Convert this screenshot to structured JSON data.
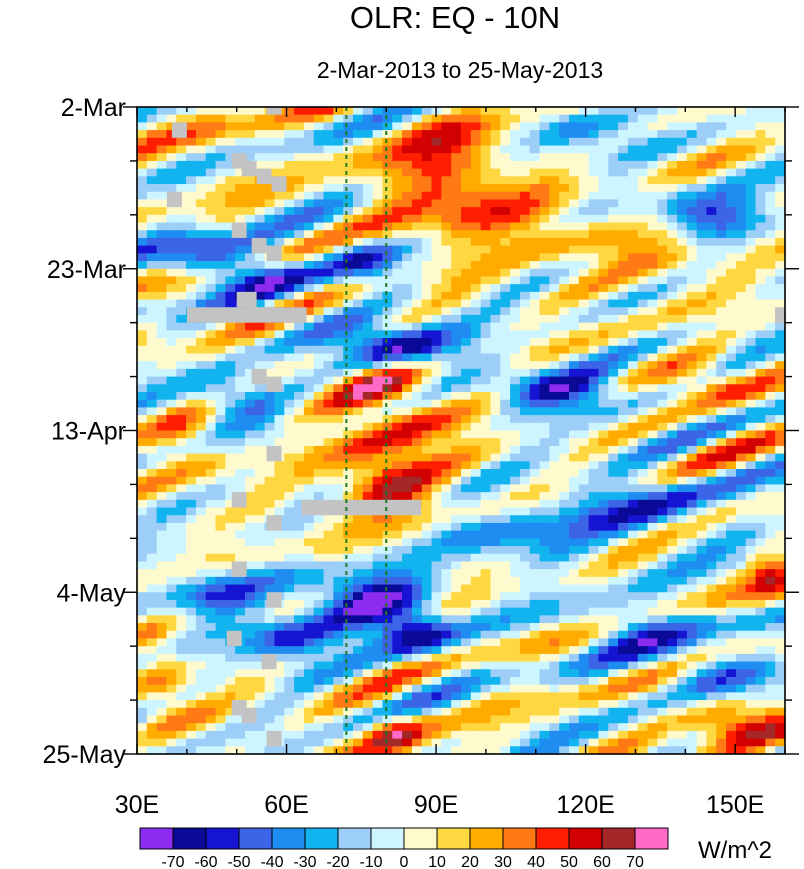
{
  "chart_data": {
    "type": "heatmap",
    "title": "OLR: EQ - 10N",
    "subtitle": "2-Mar-2013 to 25-May-2013",
    "x_axis": {
      "range": [
        30,
        160
      ],
      "ticks": [
        30,
        60,
        90,
        120,
        150
      ],
      "tick_labels": [
        "30E",
        "60E",
        "90E",
        "120E",
        "150E"
      ]
    },
    "y_axis": {
      "range_days": [
        0,
        84
      ],
      "ticks_days": [
        0,
        21,
        42,
        63,
        84
      ],
      "tick_labels": [
        "2-Mar",
        "23-Mar",
        "13-Apr",
        "4-May",
        "25-May"
      ]
    },
    "reference_lines_lon": [
      72,
      80
    ],
    "colorbar": {
      "units": "W/m^2",
      "levels": [
        -70,
        -60,
        -50,
        -40,
        -30,
        -20,
        -10,
        0,
        10,
        20,
        30,
        40,
        50,
        60,
        70
      ],
      "level_labels": [
        "-70",
        "-60",
        "-50",
        "-40",
        "-30",
        "-20",
        "-10",
        "0",
        "10",
        "20",
        "30",
        "40",
        "50",
        "60",
        "70"
      ],
      "colors": [
        "#8c2cf0",
        "#0a0a96",
        "#1414d2",
        "#3c64e6",
        "#1e8cf0",
        "#12b4f0",
        "#9ccef8",
        "#ccf5ff",
        "#fffacd",
        "#ffd740",
        "#ffab00",
        "#ff7a14",
        "#ff1e00",
        "#d20000",
        "#a52828",
        "#ff69c8"
      ]
    },
    "anomaly_features": [
      {
        "label": "positive",
        "lon_center": 92,
        "day_center": 9,
        "lon_halfwidth": 13,
        "day_halfwidth": 8,
        "value": 48
      },
      {
        "label": "positive",
        "lon_center": 80,
        "day_center": 49,
        "lon_halfwidth": 10,
        "day_halfwidth": 5,
        "value": 48
      },
      {
        "label": "positive",
        "lon_center": 83,
        "day_center": 41,
        "lon_halfwidth": 14,
        "day_halfwidth": 6,
        "value": 32
      },
      {
        "label": "positive",
        "lon_center": 78,
        "day_center": 36,
        "lon_halfwidth": 10,
        "day_halfwidth": 3,
        "value": 28
      },
      {
        "label": "positive",
        "lon_center": 110,
        "day_center": 16,
        "lon_halfwidth": 15,
        "day_halfwidth": 4,
        "value": 26
      },
      {
        "label": "positive",
        "lon_center": 135,
        "day_center": 20,
        "lon_halfwidth": 12,
        "day_halfwidth": 4,
        "value": 22
      },
      {
        "label": "positive",
        "lon_center": 150,
        "day_center": 80,
        "lon_halfwidth": 10,
        "day_halfwidth": 3,
        "value": 42
      },
      {
        "label": "positive",
        "lon_center": 82,
        "day_center": 82,
        "lon_halfwidth": 6,
        "day_halfwidth": 3,
        "value": 48
      },
      {
        "label": "positive",
        "lon_center": 35,
        "day_center": 75,
        "lon_halfwidth": 6,
        "day_halfwidth": 5,
        "value": 30
      },
      {
        "label": "positive",
        "lon_center": 145,
        "day_center": 36,
        "lon_halfwidth": 10,
        "day_halfwidth": 3,
        "value": 30
      },
      {
        "label": "positive",
        "lon_center": 157,
        "day_center": 61,
        "lon_halfwidth": 4,
        "day_halfwidth": 3,
        "value": 38
      },
      {
        "label": "positive",
        "lon_center": 128,
        "day_center": 66,
        "lon_halfwidth": 12,
        "day_halfwidth": 3,
        "value": 18
      },
      {
        "label": "positive",
        "lon_center": 45,
        "day_center": 4,
        "lon_halfwidth": 10,
        "day_halfwidth": 4,
        "value": 16
      },
      {
        "label": "positive",
        "lon_center": 40,
        "day_center": 45,
        "lon_halfwidth": 8,
        "day_halfwidth": 4,
        "value": 22
      },
      {
        "label": "positive",
        "lon_center": 70,
        "day_center": 59,
        "lon_halfwidth": 8,
        "day_halfwidth": 3,
        "value": 20
      },
      {
        "label": "negative",
        "lon_center": 82,
        "day_center": 31,
        "lon_halfwidth": 14,
        "day_halfwidth": 3,
        "value": -62
      },
      {
        "label": "negative",
        "lon_center": 75,
        "day_center": 63,
        "lon_halfwidth": 12,
        "day_halfwidth": 4,
        "value": -65
      },
      {
        "label": "negative",
        "lon_center": 85,
        "day_center": 68,
        "lon_halfwidth": 8,
        "day_halfwidth": 3,
        "value": -62
      },
      {
        "label": "negative",
        "lon_center": 60,
        "day_center": 69,
        "lon_halfwidth": 12,
        "day_halfwidth": 3,
        "value": -50
      },
      {
        "label": "negative",
        "lon_center": 115,
        "day_center": 37,
        "lon_halfwidth": 13,
        "day_halfwidth": 3,
        "value": -55
      },
      {
        "label": "negative",
        "lon_center": 130,
        "day_center": 67,
        "lon_halfwidth": 13,
        "day_halfwidth": 3,
        "value": -52
      },
      {
        "label": "negative",
        "lon_center": 42,
        "day_center": 19,
        "lon_halfwidth": 10,
        "day_halfwidth": 3,
        "value": -45
      },
      {
        "label": "negative",
        "lon_center": 145,
        "day_center": 14,
        "lon_halfwidth": 10,
        "day_halfwidth": 3,
        "value": -52
      },
      {
        "label": "negative",
        "lon_center": 50,
        "day_center": 38,
        "lon_halfwidth": 8,
        "day_halfwidth": 3,
        "value": -42
      },
      {
        "label": "negative",
        "lon_center": 130,
        "day_center": 52,
        "lon_halfwidth": 18,
        "day_halfwidth": 4,
        "value": -38
      },
      {
        "label": "negative",
        "lon_center": 55,
        "day_center": 22,
        "lon_halfwidth": 10,
        "day_halfwidth": 3,
        "value": -40
      },
      {
        "label": "negative",
        "lon_center": 145,
        "day_center": 73,
        "lon_halfwidth": 12,
        "day_halfwidth": 3,
        "value": -38
      },
      {
        "label": "negative",
        "lon_center": 105,
        "day_center": 56,
        "lon_halfwidth": 14,
        "day_halfwidth": 3,
        "value": -35
      },
      {
        "label": "negative",
        "lon_center": 75,
        "day_center": 20,
        "lon_halfwidth": 8,
        "day_halfwidth": 3,
        "value": -38
      },
      {
        "label": "negative",
        "lon_center": 120,
        "day_center": 3,
        "lon_halfwidth": 10,
        "day_halfwidth": 3,
        "value": -32
      },
      {
        "label": "negative",
        "lon_center": 45,
        "day_center": 63,
        "lon_halfwidth": 10,
        "day_halfwidth": 3,
        "value": -40
      }
    ],
    "missing_cells": [
      {
        "lon": 37,
        "day": 2,
        "lon_width": 3,
        "day_height": 2
      },
      {
        "lon": 36,
        "day": 11,
        "lon_width": 3,
        "day_height": 2
      },
      {
        "lon": 49,
        "day": 6,
        "lon_width": 3,
        "day_height": 2
      },
      {
        "lon": 51,
        "day": 7,
        "lon_width": 3,
        "day_height": 2
      },
      {
        "lon": 54,
        "day": 8,
        "lon_width": 3,
        "day_height": 2
      },
      {
        "lon": 57,
        "day": 9,
        "lon_width": 3,
        "day_height": 2
      },
      {
        "lon": 49,
        "day": 15,
        "lon_width": 3,
        "day_height": 2
      },
      {
        "lon": 53,
        "day": 17,
        "lon_width": 3,
        "day_height": 2
      },
      {
        "lon": 56,
        "day": 18,
        "lon_width": 3,
        "day_height": 2
      },
      {
        "lon": 50,
        "day": 24,
        "lon_width": 4,
        "day_height": 2
      },
      {
        "lon": 40,
        "day": 26,
        "lon_width": 24,
        "day_height": 2
      },
      {
        "lon": 53,
        "day": 34,
        "lon_width": 3,
        "day_height": 2
      },
      {
        "lon": 56,
        "day": 35,
        "lon_width": 3,
        "day_height": 2
      },
      {
        "lon": 56,
        "day": 44,
        "lon_width": 3,
        "day_height": 2
      },
      {
        "lon": 49,
        "day": 50,
        "lon_width": 3,
        "day_height": 2
      },
      {
        "lon": 63,
        "day": 51,
        "lon_width": 24,
        "day_height": 2
      },
      {
        "lon": 56,
        "day": 53,
        "lon_width": 3,
        "day_height": 2
      },
      {
        "lon": 49,
        "day": 59,
        "lon_width": 3,
        "day_height": 2
      },
      {
        "lon": 56,
        "day": 63,
        "lon_width": 3,
        "day_height": 2
      },
      {
        "lon": 48,
        "day": 68,
        "lon_width": 3,
        "day_height": 2
      },
      {
        "lon": 55,
        "day": 71,
        "lon_width": 3,
        "day_height": 2
      },
      {
        "lon": 49,
        "day": 77,
        "lon_width": 3,
        "day_height": 2
      },
      {
        "lon": 51,
        "day": 78,
        "lon_width": 3,
        "day_height": 2
      },
      {
        "lon": 56,
        "day": 81,
        "lon_width": 3,
        "day_height": 2
      },
      {
        "lon": 56,
        "day": 0,
        "lon_width": 3,
        "day_height": 1
      },
      {
        "lon": 158,
        "day": 26,
        "lon_width": 2,
        "day_height": 2
      }
    ]
  }
}
